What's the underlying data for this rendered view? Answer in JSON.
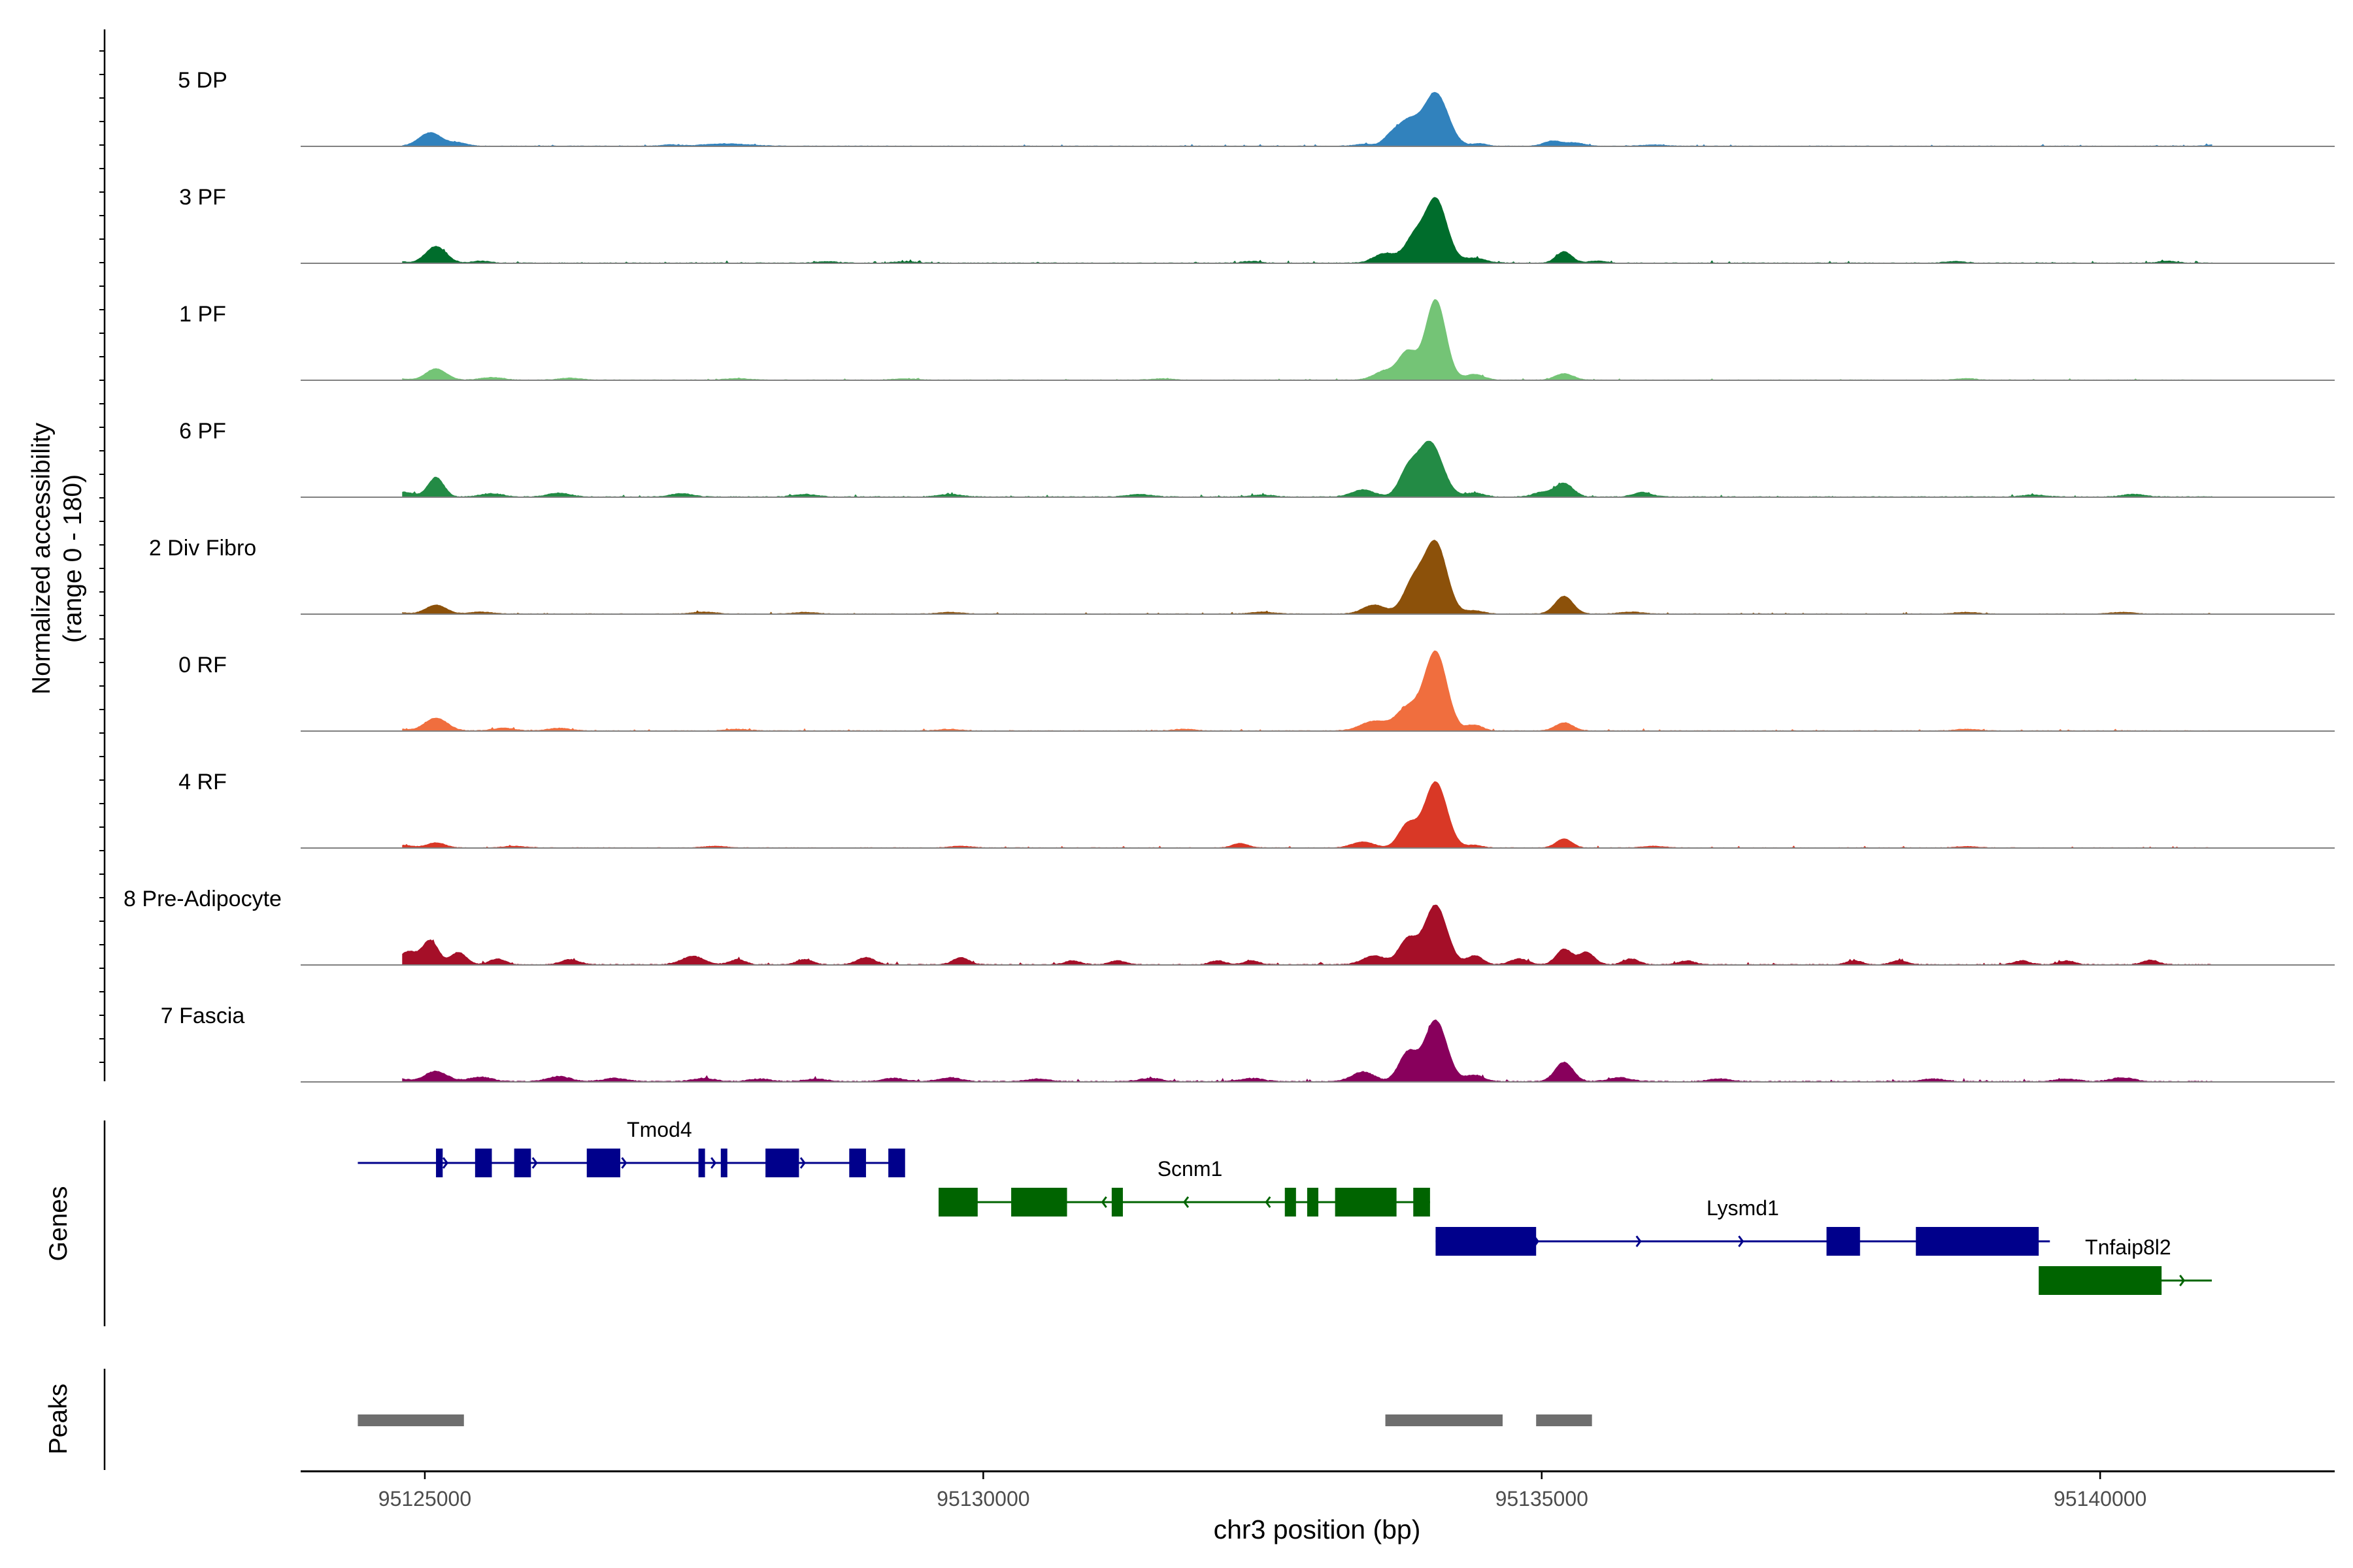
{
  "chart_data": {
    "type": "area",
    "title": "",
    "chromosome": "chr3",
    "xlabel": "chr3 position (bp)",
    "ylabel_line1": "Normalized accessibility",
    "ylabel_line2": "(range 0 - 180)",
    "y_range": [
      0,
      180
    ],
    "xlim": [
      95123900,
      95142100
    ],
    "x_ticks": [
      95125000,
      95130000,
      95135000,
      95140000
    ],
    "x_tick_labels": [
      "95125000",
      "95130000",
      "95135000",
      "95140000"
    ],
    "signal_span": [
      95124800,
      95141000
    ],
    "baseline_color": "#808080",
    "tracks": [
      {
        "name": "5 DP",
        "color": "#3182BD",
        "noise": 1.6,
        "seed": 11,
        "peaks": [
          [
            95124550,
            10,
            80
          ],
          [
            95125050,
            42,
            100
          ],
          [
            95125300,
            10,
            80
          ],
          [
            95127200,
            4,
            80
          ],
          [
            95127700,
            7,
            200
          ],
          [
            95133400,
            6,
            80
          ],
          [
            95133650,
            28,
            70
          ],
          [
            95133800,
            72,
            90
          ],
          [
            95134050,
            165,
            110
          ],
          [
            95134450,
            8,
            60
          ],
          [
            95135100,
            16,
            80
          ],
          [
            95135300,
            10,
            80
          ],
          [
            95136000,
            4,
            100
          ],
          [
            95141000,
            4,
            60
          ]
        ]
      },
      {
        "name": "3 PF",
        "color": "#006D2C",
        "noise": 2.0,
        "seed": 23,
        "peaks": [
          [
            95124700,
            8,
            90
          ],
          [
            95125100,
            52,
            90
          ],
          [
            95125500,
            6,
            80
          ],
          [
            95128600,
            4,
            100
          ],
          [
            95129300,
            4,
            100
          ],
          [
            95132400,
            5,
            80
          ],
          [
            95133600,
            30,
            100
          ],
          [
            95133850,
            70,
            80
          ],
          [
            95134050,
            200,
            100
          ],
          [
            95134400,
            15,
            100
          ],
          [
            95135200,
            35,
            70
          ],
          [
            95135500,
            6,
            80
          ],
          [
            95138700,
            5,
            80
          ],
          [
            95140600,
            6,
            80
          ]
        ]
      },
      {
        "name": "1 PF",
        "color": "#74C476",
        "noise": 1.5,
        "seed": 37,
        "peaks": [
          [
            95124700,
            8,
            90
          ],
          [
            95125100,
            35,
            90
          ],
          [
            95125600,
            8,
            100
          ],
          [
            95126300,
            6,
            100
          ],
          [
            95127800,
            5,
            100
          ],
          [
            95129300,
            4,
            100
          ],
          [
            95131600,
            4,
            100
          ],
          [
            95133600,
            28,
            100
          ],
          [
            95133800,
            85,
            80
          ],
          [
            95134050,
            250,
            90
          ],
          [
            95134400,
            18,
            80
          ],
          [
            95135200,
            20,
            80
          ],
          [
            95138800,
            5,
            80
          ]
        ]
      },
      {
        "name": "6 PF",
        "color": "#238B45",
        "noise": 2.2,
        "seed": 41,
        "peaks": [
          [
            95124800,
            15,
            100
          ],
          [
            95125100,
            60,
            70
          ],
          [
            95125600,
            10,
            100
          ],
          [
            95126200,
            12,
            100
          ],
          [
            95127300,
            10,
            100
          ],
          [
            95128400,
            8,
            100
          ],
          [
            95129700,
            8,
            100
          ],
          [
            95131400,
            8,
            100
          ],
          [
            95132500,
            6,
            100
          ],
          [
            95133400,
            22,
            100
          ],
          [
            95133800,
            72,
            80
          ],
          [
            95134000,
            170,
            110
          ],
          [
            95134400,
            12,
            80
          ],
          [
            95135000,
            14,
            80
          ],
          [
            95135200,
            42,
            80
          ],
          [
            95135900,
            14,
            80
          ],
          [
            95139400,
            6,
            100
          ],
          [
            95140300,
            8,
            100
          ]
        ]
      },
      {
        "name": "2 Div Fibro",
        "color": "#8C510A",
        "noise": 1.5,
        "seed": 53,
        "peaks": [
          [
            95124700,
            8,
            90
          ],
          [
            95125100,
            28,
            90
          ],
          [
            95125500,
            6,
            100
          ],
          [
            95127500,
            6,
            100
          ],
          [
            95128400,
            5,
            100
          ],
          [
            95129700,
            5,
            100
          ],
          [
            95132500,
            6,
            100
          ],
          [
            95133500,
            28,
            100
          ],
          [
            95133850,
            95,
            90
          ],
          [
            95134050,
            220,
            100
          ],
          [
            95134400,
            10,
            80
          ],
          [
            95135200,
            55,
            80
          ],
          [
            95135800,
            6,
            100
          ],
          [
            95138800,
            5,
            100
          ],
          [
            95140200,
            5,
            100
          ]
        ]
      },
      {
        "name": "0 RF",
        "color": "#F06E3E",
        "noise": 1.8,
        "seed": 67,
        "peaks": [
          [
            95124700,
            10,
            90
          ],
          [
            95125100,
            40,
            100
          ],
          [
            95125700,
            8,
            100
          ],
          [
            95126200,
            8,
            100
          ],
          [
            95127800,
            5,
            100
          ],
          [
            95129700,
            5,
            100
          ],
          [
            95131800,
            5,
            100
          ],
          [
            95133500,
            30,
            120
          ],
          [
            95133800,
            70,
            100
          ],
          [
            95134050,
            245,
            100
          ],
          [
            95134400,
            18,
            70
          ],
          [
            95135200,
            25,
            80
          ],
          [
            95138800,
            5,
            100
          ]
        ]
      },
      {
        "name": "4 RF",
        "color": "#D93826",
        "noise": 1.5,
        "seed": 79,
        "peaks": [
          [
            95124800,
            8,
            90
          ],
          [
            95125100,
            16,
            80
          ],
          [
            95125800,
            5,
            100
          ],
          [
            95127600,
            5,
            100
          ],
          [
            95129800,
            5,
            100
          ],
          [
            95132300,
            14,
            70
          ],
          [
            95133400,
            18,
            100
          ],
          [
            95133800,
            72,
            80
          ],
          [
            95134050,
            205,
            100
          ],
          [
            95134400,
            8,
            70
          ],
          [
            95135200,
            28,
            70
          ],
          [
            95136000,
            5,
            100
          ],
          [
            95138800,
            4,
            100
          ]
        ]
      },
      {
        "name": "8 Pre-Adipocyte",
        "color": "#A50F28",
        "noise": 2.5,
        "seed": 83,
        "peaks": [
          [
            95124450,
            8,
            50
          ],
          [
            95124850,
            40,
            80
          ],
          [
            95125050,
            75,
            70
          ],
          [
            95125300,
            38,
            70
          ],
          [
            95125650,
            18,
            70
          ],
          [
            95126300,
            16,
            80
          ],
          [
            95127400,
            26,
            100
          ],
          [
            95127800,
            16,
            70
          ],
          [
            95128400,
            16,
            70
          ],
          [
            95128950,
            22,
            80
          ],
          [
            95129800,
            22,
            70
          ],
          [
            95130800,
            12,
            70
          ],
          [
            95131200,
            12,
            70
          ],
          [
            95132100,
            12,
            70
          ],
          [
            95132400,
            12,
            70
          ],
          [
            95133500,
            28,
            100
          ],
          [
            95133800,
            78,
            80
          ],
          [
            95134050,
            185,
            100
          ],
          [
            95134400,
            28,
            70
          ],
          [
            95134800,
            18,
            80
          ],
          [
            95135200,
            48,
            70
          ],
          [
            95135400,
            38,
            70
          ],
          [
            95135800,
            18,
            70
          ],
          [
            95136300,
            12,
            70
          ],
          [
            95137800,
            12,
            70
          ],
          [
            95138200,
            12,
            70
          ],
          [
            95139300,
            12,
            70
          ],
          [
            95139700,
            12,
            70
          ],
          [
            95140450,
            14,
            70
          ]
        ]
      },
      {
        "name": "7 Fascia",
        "color": "#88005C",
        "noise": 2.8,
        "seed": 97,
        "peaks": [
          [
            95124700,
            15,
            100
          ],
          [
            95125100,
            32,
            100
          ],
          [
            95125500,
            14,
            100
          ],
          [
            95126200,
            16,
            100
          ],
          [
            95126700,
            10,
            100
          ],
          [
            95127500,
            10,
            100
          ],
          [
            95128000,
            8,
            100
          ],
          [
            95128500,
            8,
            100
          ],
          [
            95129200,
            10,
            100
          ],
          [
            95129700,
            12,
            100
          ],
          [
            95130500,
            8,
            100
          ],
          [
            95131500,
            10,
            100
          ],
          [
            95132400,
            10,
            100
          ],
          [
            95133400,
            30,
            100
          ],
          [
            95133800,
            88,
            80
          ],
          [
            95134050,
            190,
            100
          ],
          [
            95134400,
            20,
            80
          ],
          [
            95135200,
            60,
            80
          ],
          [
            95135700,
            12,
            100
          ],
          [
            95136600,
            8,
            100
          ],
          [
            95138500,
            8,
            100
          ],
          [
            95139700,
            8,
            100
          ],
          [
            95140200,
            12,
            100
          ]
        ]
      }
    ],
    "genes_label": "Genes",
    "peaks_label": "Peaks",
    "genes": [
      {
        "name": "Tmod4",
        "color": "#00008B",
        "strand": "+",
        "start": 95124400,
        "end": 95129200,
        "row": 2,
        "label_x": 95127100,
        "exons": [
          [
            95124400,
            95124400
          ],
          [
            95125100,
            95125160
          ],
          [
            95125450,
            95125600
          ],
          [
            95125800,
            95125950
          ],
          [
            95126450,
            95126750
          ],
          [
            95127450,
            95127500
          ],
          [
            95127650,
            95127700
          ],
          [
            95128050,
            95128350
          ],
          [
            95128800,
            95128950
          ],
          [
            95129150,
            95129300
          ]
        ]
      },
      {
        "name": "Scnm1",
        "color": "#006400",
        "strand": "-",
        "start": 95129600,
        "end": 95134000,
        "row": 1,
        "label_x": 95131850,
        "exons": [
          [
            95129600,
            95129950
          ],
          [
            95130250,
            95130750
          ],
          [
            95131150,
            95131250
          ],
          [
            95132700,
            95132800
          ],
          [
            95132900,
            95133000
          ],
          [
            95133150,
            95133700
          ],
          [
            95133850,
            95134000
          ]
        ]
      },
      {
        "name": "Lysmd1",
        "color": "#00008B",
        "strand": "+",
        "start": 95134050,
        "end": 95139550,
        "row": 0,
        "label_x": 95136800,
        "exons": [
          [
            95134050,
            95134950
          ],
          [
            95137550,
            95137850
          ],
          [
            95138350,
            95139450
          ]
        ]
      },
      {
        "name": "Tnfaip8l2",
        "color": "#006400",
        "strand": "+",
        "start": 95139500,
        "end": 95141000,
        "row": -1,
        "label_x": 95140250,
        "exons": [
          [
            95139450,
            95140550
          ]
        ]
      }
    ],
    "peak_regions": [
      [
        95124400,
        95125350
      ],
      [
        95133600,
        95134650
      ],
      [
        95134950,
        95135450
      ]
    ]
  }
}
